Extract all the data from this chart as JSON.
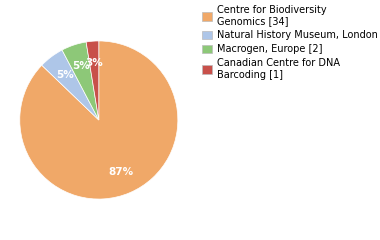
{
  "labels": [
    "Centre for Biodiversity\nGenomics [34]",
    "Natural History Museum, London [2]",
    "Macrogen, Europe [2]",
    "Canadian Centre for DNA\nBarcoding [1]"
  ],
  "values": [
    34,
    2,
    2,
    1
  ],
  "colors": [
    "#f0a868",
    "#aec6e8",
    "#8dc878",
    "#c8504a"
  ],
  "startangle": 90,
  "background_color": "#ffffff",
  "autopct_fontsize": 7.5,
  "legend_fontsize": 7.0
}
